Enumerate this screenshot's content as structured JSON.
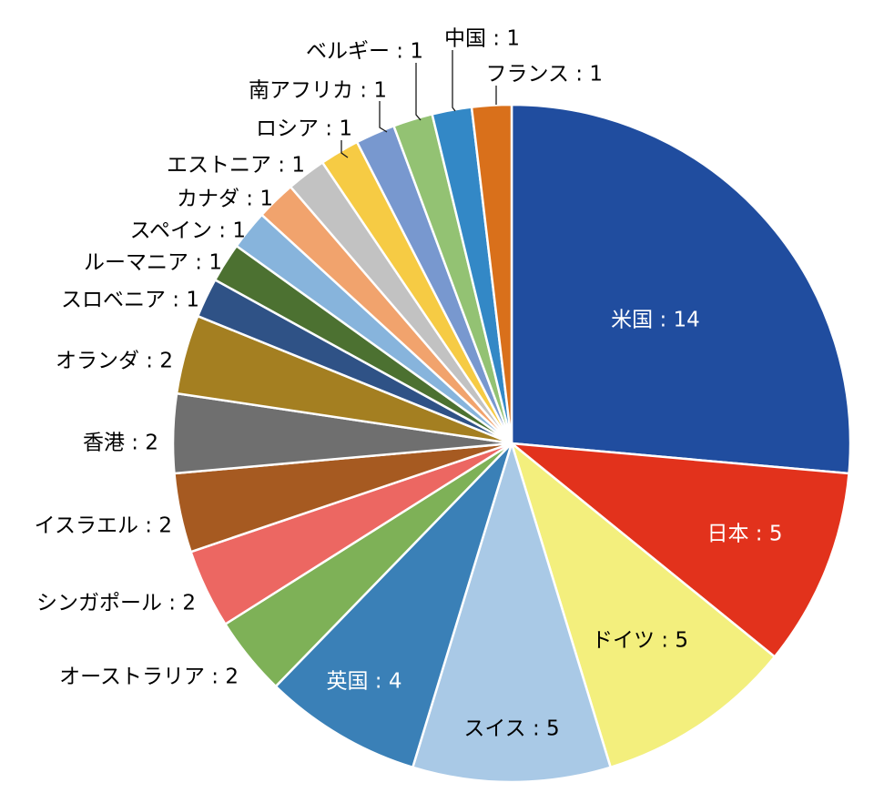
{
  "chart_data": {
    "type": "pie",
    "start_angle_deg": 0,
    "direction": "clockwise",
    "slices": [
      {
        "label": "米国",
        "value": 14,
        "color": "#204d9f",
        "text_color": "#ffffff",
        "placement": "inside",
        "text": "米国 : 14"
      },
      {
        "label": "日本",
        "value": 5,
        "color": "#e2321c",
        "text_color": "#ffffff",
        "placement": "inside",
        "text": "日本 : 5"
      },
      {
        "label": "ドイツ",
        "value": 5,
        "color": "#f3ef7d",
        "text_color": "#000000",
        "placement": "inside",
        "text": "ドイツ : 5"
      },
      {
        "label": "スイス",
        "value": 5,
        "color": "#a9c9e6",
        "text_color": "#000000",
        "placement": "inside",
        "text": "スイス : 5"
      },
      {
        "label": "英国",
        "value": 4,
        "color": "#3a80b7",
        "text_color": "#ffffff",
        "placement": "inside",
        "text": "英国 : 4"
      },
      {
        "label": "オーストラリア",
        "value": 2,
        "color": "#7eb157",
        "text_color": "#000000",
        "placement": "outside",
        "text": "オーストラリア : 2"
      },
      {
        "label": "シンガポール",
        "value": 2,
        "color": "#ec6762",
        "text_color": "#000000",
        "placement": "outside",
        "text": "シンガポール : 2"
      },
      {
        "label": "イスラエル",
        "value": 2,
        "color": "#a65a21",
        "text_color": "#000000",
        "placement": "outside",
        "text": "イスラエル : 2"
      },
      {
        "label": "香港",
        "value": 2,
        "color": "#6f6f6f",
        "text_color": "#000000",
        "placement": "outside",
        "text": "香港 : 2"
      },
      {
        "label": "オランダ",
        "value": 2,
        "color": "#a47f21",
        "text_color": "#000000",
        "placement": "outside",
        "text": "オランダ : 2"
      },
      {
        "label": "スロベニア",
        "value": 1,
        "color": "#2f5286",
        "text_color": "#000000",
        "placement": "outside",
        "text": "スロベニア : 1"
      },
      {
        "label": "ルーマニア",
        "value": 1,
        "color": "#4c7131",
        "text_color": "#000000",
        "placement": "outside",
        "text": "ルーマニア : 1"
      },
      {
        "label": "スペイン",
        "value": 1,
        "color": "#87b4dc",
        "text_color": "#000000",
        "placement": "outside",
        "text": "スペイン : 1"
      },
      {
        "label": "カナダ",
        "value": 1,
        "color": "#f1a36d",
        "text_color": "#000000",
        "placement": "outside",
        "text": "カナダ : 1"
      },
      {
        "label": "エストニア",
        "value": 1,
        "color": "#c2c2c2",
        "text_color": "#000000",
        "placement": "outside",
        "text": "エストニア : 1"
      },
      {
        "label": "ロシア",
        "value": 1,
        "color": "#f6cb44",
        "text_color": "#000000",
        "placement": "outside",
        "text": "ロシア : 1"
      },
      {
        "label": "南アフリカ",
        "value": 1,
        "color": "#7898cf",
        "text_color": "#000000",
        "placement": "outside",
        "text": "南アフリカ : 1"
      },
      {
        "label": "ベルギー",
        "value": 1,
        "color": "#93c273",
        "text_color": "#000000",
        "placement": "outside",
        "text": "ベルギー : 1"
      },
      {
        "label": "中国",
        "value": 1,
        "color": "#3388c6",
        "text_color": "#000000",
        "placement": "outside",
        "text": "中国 : 1"
      },
      {
        "label": "フランス",
        "value": 1,
        "color": "#d9701b",
        "text_color": "#000000",
        "placement": "outside",
        "text": "フランス : 1"
      }
    ],
    "title": "",
    "legend": "none"
  }
}
